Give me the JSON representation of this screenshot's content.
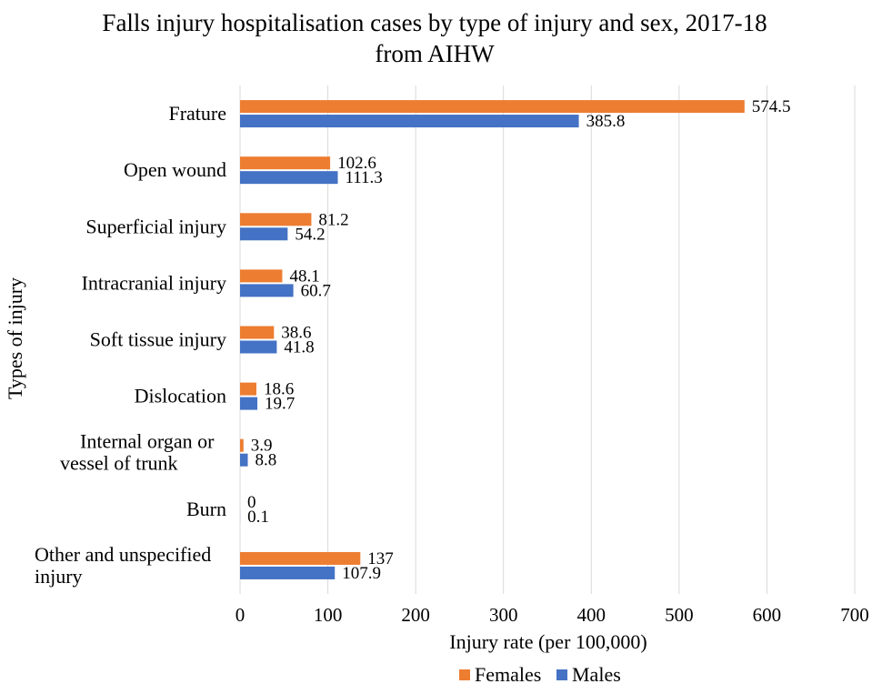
{
  "chart_data": {
    "type": "bar",
    "orientation": "horizontal",
    "title": [
      "Falls injury hospitalisation cases by type of injury and sex, 2017-18",
      "from AIHW"
    ],
    "xlabel": "Injury rate (per 100,000)",
    "ylabel": "Types of injury",
    "categories": [
      [
        "Frature"
      ],
      [
        "Open wound"
      ],
      [
        "Superficial injury"
      ],
      [
        "Intracranial injury"
      ],
      [
        "Soft tissue injury"
      ],
      [
        "Dislocation"
      ],
      [
        "Internal organ or",
        "vessel of trunk"
      ],
      [
        "Burn"
      ],
      [
        "Other and unspecified",
        "injury"
      ]
    ],
    "series": [
      {
        "name": "Females",
        "color": "#ED7D31",
        "values": [
          574.5,
          102.6,
          81.2,
          48.1,
          38.6,
          18.6,
          3.9,
          0,
          137
        ],
        "labels": [
          "574.5",
          "102.6",
          "81.2",
          "48.1",
          "38.6",
          "18.6",
          "3.9",
          "0",
          "137"
        ]
      },
      {
        "name": "Males",
        "color": "#4472C4",
        "values": [
          385.8,
          111.3,
          54.2,
          60.7,
          41.8,
          19.7,
          8.8,
          0.1,
          107.9
        ],
        "labels": [
          "385.8",
          "111.3",
          "54.2",
          "60.7",
          "41.8",
          "19.7",
          "8.8",
          "0.1",
          "107.9"
        ]
      }
    ],
    "xlim": [
      0,
      700
    ],
    "xticks": [
      0,
      100,
      200,
      300,
      400,
      500,
      600,
      700
    ],
    "grid": true,
    "legend_position": "bottom"
  }
}
